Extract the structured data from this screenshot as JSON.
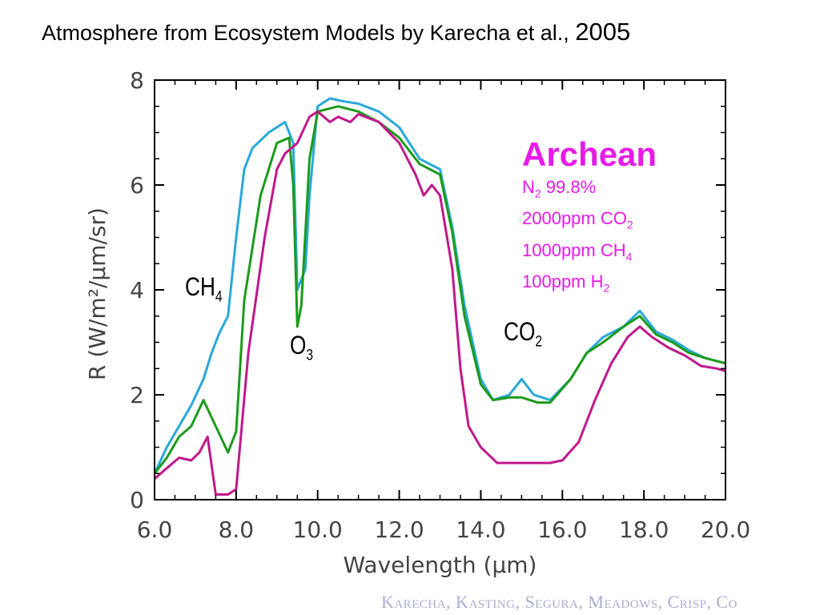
{
  "slide": {
    "title_main": "Atmosphere from Ecosystem Models by Karecha et al.",
    "title_sep": ", ",
    "title_year": "2005",
    "credit": "Karecha, Kasting, Segura, Meadows, Crisp, Co"
  },
  "legend": {
    "era": "Archean",
    "lines": [
      {
        "pre": "N",
        "sub": "2",
        "post": " 99.8%"
      },
      {
        "pre": "2000ppm CO",
        "sub": "2",
        "post": ""
      },
      {
        "pre": "1000ppm CH",
        "sub": "4",
        "post": ""
      },
      {
        "pre": "100ppm H",
        "sub": "2",
        "post": ""
      }
    ]
  },
  "annotations": [
    {
      "pre": "CH",
      "sub": "4"
    },
    {
      "pre": "O",
      "sub": "3"
    },
    {
      "pre": "CO",
      "sub": "2"
    }
  ],
  "colors": {
    "cyan": "#29a8d8",
    "green": "#1c9a1c",
    "magenta": "#c0188c",
    "legend": "#e81ae8"
  },
  "chart_data": {
    "type": "line",
    "xlabel": "Wavelength (μm)",
    "ylabel": "R (W/m²/μm/sr)",
    "xlim": [
      6.0,
      20.0
    ],
    "ylim": [
      0,
      8
    ],
    "xticks": [
      6.0,
      8.0,
      10.0,
      12.0,
      14.0,
      16.0,
      18.0,
      20.0
    ],
    "yticks": [
      0,
      2,
      4,
      6,
      8
    ],
    "grid": false,
    "series": [
      {
        "color": "#29a8d8",
        "x": [
          6.0,
          6.3,
          6.6,
          6.9,
          7.2,
          7.4,
          7.6,
          7.8,
          8.0,
          8.2,
          8.4,
          8.8,
          9.2,
          9.4,
          9.5,
          9.6,
          9.7,
          9.8,
          10.0,
          10.3,
          10.6,
          11.0,
          11.5,
          12.0,
          12.5,
          13.0,
          13.3,
          13.6,
          14.0,
          14.3,
          14.7,
          15.0,
          15.3,
          15.7,
          16.2,
          16.6,
          17.0,
          17.5,
          17.9,
          18.3,
          18.7,
          19.1,
          19.5,
          20.0
        ],
        "y": [
          0.5,
          1.0,
          1.4,
          1.8,
          2.3,
          2.8,
          3.2,
          3.5,
          5.0,
          6.3,
          6.7,
          7.0,
          7.2,
          6.8,
          4.0,
          4.2,
          4.4,
          5.8,
          7.5,
          7.65,
          7.6,
          7.55,
          7.4,
          7.1,
          6.5,
          6.3,
          5.2,
          3.7,
          2.3,
          1.9,
          2.0,
          2.3,
          2.0,
          1.9,
          2.3,
          2.8,
          3.1,
          3.3,
          3.6,
          3.2,
          3.05,
          2.85,
          2.7,
          2.6
        ]
      },
      {
        "color": "#1c9a1c",
        "x": [
          6.0,
          6.3,
          6.6,
          6.9,
          7.2,
          7.5,
          7.8,
          8.0,
          8.2,
          8.6,
          9.0,
          9.3,
          9.4,
          9.5,
          9.6,
          9.8,
          10.0,
          10.5,
          11.0,
          11.5,
          12.0,
          12.5,
          13.0,
          13.3,
          13.6,
          14.0,
          14.3,
          14.7,
          15.0,
          15.4,
          15.7,
          16.2,
          16.6,
          17.0,
          17.5,
          17.9,
          18.3,
          18.7,
          19.1,
          19.5,
          20.0
        ],
        "y": [
          0.5,
          0.8,
          1.2,
          1.4,
          1.9,
          1.4,
          0.9,
          1.3,
          3.8,
          5.8,
          6.8,
          6.9,
          6.0,
          3.3,
          3.7,
          6.5,
          7.4,
          7.5,
          7.4,
          7.2,
          6.9,
          6.4,
          6.2,
          5.1,
          3.5,
          2.2,
          1.9,
          1.95,
          1.95,
          1.85,
          1.85,
          2.3,
          2.8,
          3.0,
          3.3,
          3.5,
          3.15,
          3.0,
          2.8,
          2.7,
          2.6
        ]
      },
      {
        "color": "#c0188c",
        "x": [
          6.0,
          6.3,
          6.6,
          6.9,
          7.1,
          7.3,
          7.5,
          7.8,
          8.0,
          8.3,
          8.7,
          9.0,
          9.2,
          9.5,
          9.8,
          10.0,
          10.3,
          10.5,
          10.8,
          11.0,
          11.5,
          12.0,
          12.4,
          12.6,
          12.8,
          13.0,
          13.3,
          13.5,
          13.7,
          14.0,
          14.4,
          15.0,
          15.7,
          16.0,
          16.4,
          16.8,
          17.2,
          17.6,
          17.9,
          18.2,
          18.6,
          19.0,
          19.4,
          19.8,
          20.0
        ],
        "y": [
          0.4,
          0.6,
          0.8,
          0.75,
          0.9,
          1.2,
          0.1,
          0.1,
          0.2,
          2.8,
          5.0,
          6.3,
          6.6,
          6.8,
          7.3,
          7.4,
          7.2,
          7.3,
          7.2,
          7.35,
          7.2,
          6.8,
          6.2,
          5.8,
          6.0,
          5.8,
          4.4,
          2.5,
          1.4,
          1.0,
          0.7,
          0.7,
          0.7,
          0.75,
          1.1,
          1.9,
          2.6,
          3.1,
          3.3,
          3.1,
          2.9,
          2.75,
          2.55,
          2.5,
          2.45
        ]
      }
    ]
  }
}
